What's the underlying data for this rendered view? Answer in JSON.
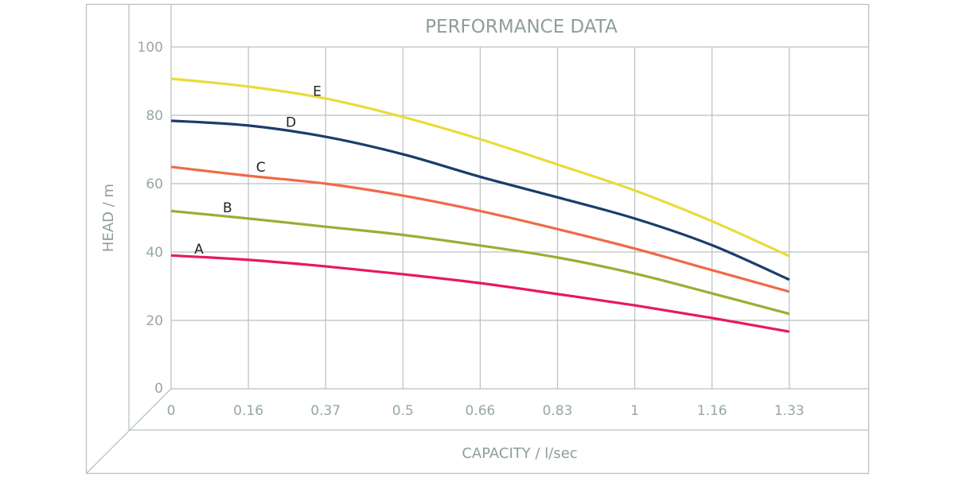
{
  "chart_data": {
    "type": "line",
    "title": "PERFORMANCE DATA",
    "xlabel": "CAPACITY / l/sec",
    "ylabel": "HEAD / m",
    "categories": [
      "0",
      "0.16",
      "0.37",
      "0.5",
      "0.66",
      "0.83",
      "1",
      "1.16",
      "1.33"
    ],
    "yticks": [
      "0",
      "20",
      "40",
      "60",
      "80",
      "100"
    ],
    "ylim": [
      0,
      100
    ],
    "grid": true,
    "series": [
      {
        "name": "A",
        "color": "#e8185f",
        "values": [
          39,
          37.7,
          35.8,
          33.5,
          30.9,
          27.7,
          24.4,
          20.7,
          16.7
        ]
      },
      {
        "name": "B",
        "color": "#9aae34",
        "values": [
          52,
          49.8,
          47.4,
          45,
          41.9,
          38.4,
          33.7,
          27.9,
          21.9
        ]
      },
      {
        "name": "C",
        "color": "#ef6a4a",
        "values": [
          64.9,
          62.3,
          60,
          56.5,
          52,
          46.7,
          41,
          34.7,
          28.4
        ]
      },
      {
        "name": "D",
        "color": "#1a3d6b",
        "values": [
          78.4,
          77,
          73.7,
          68.6,
          62,
          56,
          49.8,
          42,
          31.9
        ]
      },
      {
        "name": "E",
        "color": "#e8dc3a",
        "values": [
          90.7,
          88.4,
          84.9,
          79.5,
          73,
          65.6,
          58,
          49,
          38.8
        ]
      }
    ]
  }
}
